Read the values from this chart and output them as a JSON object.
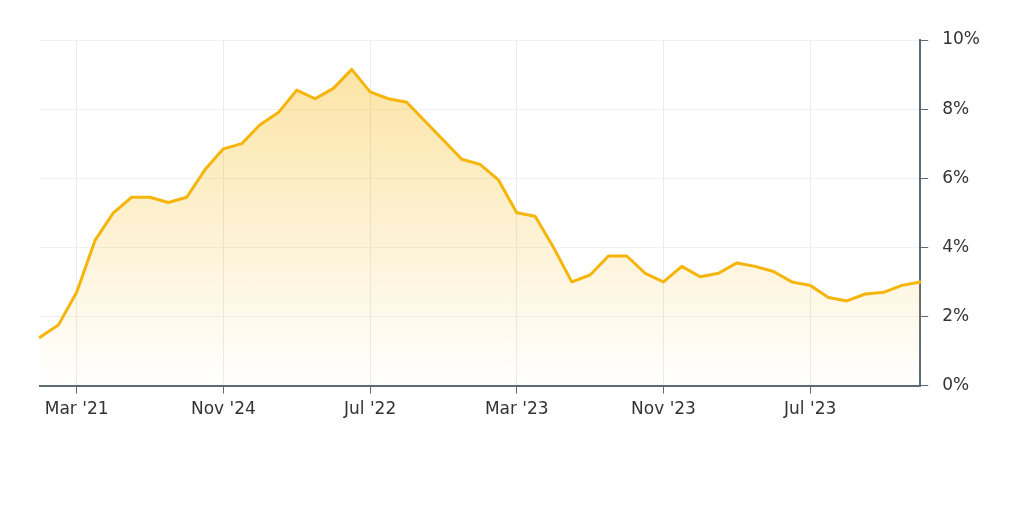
{
  "chart_data": {
    "type": "area",
    "categories": [
      null,
      null,
      "Mar '21",
      null,
      null,
      null,
      null,
      null,
      null,
      null,
      "Nov '24",
      null,
      null,
      null,
      null,
      null,
      null,
      null,
      "Jul '22",
      null,
      null,
      null,
      null,
      null,
      null,
      null,
      "Mar '23",
      null,
      null,
      null,
      null,
      null,
      null,
      null,
      "Nov '23",
      null,
      null,
      null,
      null,
      null,
      null,
      null,
      "Jul '23",
      null,
      null,
      null,
      null,
      null,
      null
    ],
    "series": [
      {
        "color": "#f5b50a",
        "values": [
          1.4,
          1.75,
          2.7,
          4.2,
          5.0,
          5.45,
          5.45,
          5.3,
          5.45,
          6.25,
          6.85,
          7.0,
          7.55,
          7.9,
          8.55,
          8.3,
          8.6,
          9.15,
          8.5,
          8.3,
          8.2,
          7.65,
          7.1,
          6.55,
          6.4,
          5.95,
          5.0,
          4.9,
          4.0,
          3.0,
          3.2,
          3.75,
          3.75,
          3.25,
          3.0,
          3.45,
          3.15,
          3.25,
          3.55,
          3.45,
          3.3,
          3.0,
          2.9,
          2.55,
          2.45,
          2.65,
          2.7,
          2.9,
          3.0
        ]
      }
    ],
    "ylim": [
      0,
      10
    ],
    "yticks": [
      {
        "value": 0,
        "label": "0%"
      },
      {
        "value": 2,
        "label": "2%"
      },
      {
        "value": 4,
        "label": "4%"
      },
      {
        "value": 6,
        "label": "6%"
      },
      {
        "value": 8,
        "label": "8%"
      },
      {
        "value": 10,
        "label": "10%"
      }
    ],
    "grid": true,
    "legend": false,
    "marker": "none",
    "line_style": "solid"
  }
}
